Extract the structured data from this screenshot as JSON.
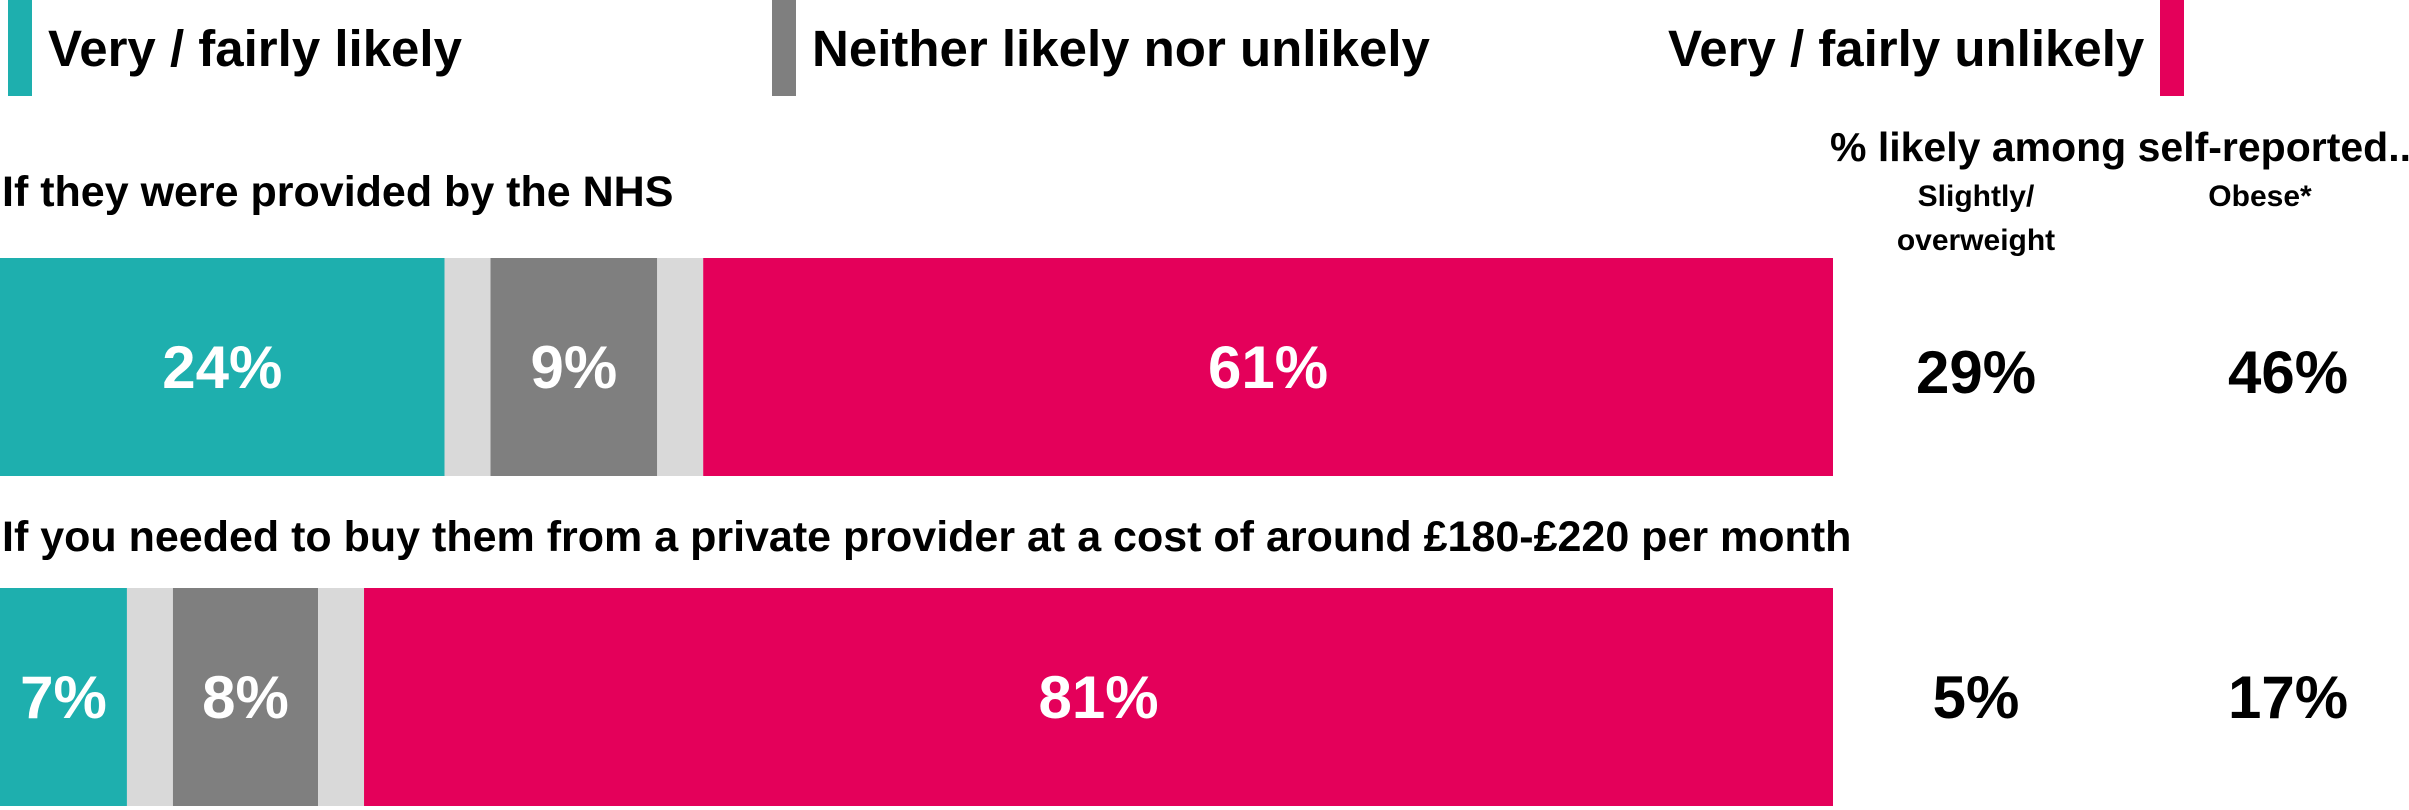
{
  "chart_data": {
    "type": "bar",
    "orientation": "horizontal",
    "stacked": true,
    "categories": [
      "If they were provided by the NHS",
      "If you needed to buy them from a private provider at a cost of around £180-£220 per month"
    ],
    "series": [
      {
        "name": "Very / fairly likely",
        "values": [
          24,
          7
        ],
        "color": "#1EAFAE"
      },
      {
        "name": "Neither likely nor unlikely",
        "values": [
          9,
          8
        ],
        "color": "#7F7F7F"
      },
      {
        "name": "Very / fairly unlikely",
        "values": [
          61,
          81
        ],
        "color": "#E4005A"
      }
    ],
    "gap_color": "#D9D9D9",
    "data_labels": [
      [
        "24%",
        "9%",
        "61%"
      ],
      [
        "7%",
        "8%",
        "81%"
      ]
    ],
    "legend_position": "top",
    "grid": false,
    "side_panel": {
      "title": "% likely among self-reported...",
      "columns": [
        "Slightly/ overweight",
        "Obese*"
      ],
      "rows": [
        [
          "29%",
          "46%"
        ],
        [
          "5%",
          "17%"
        ]
      ]
    }
  }
}
